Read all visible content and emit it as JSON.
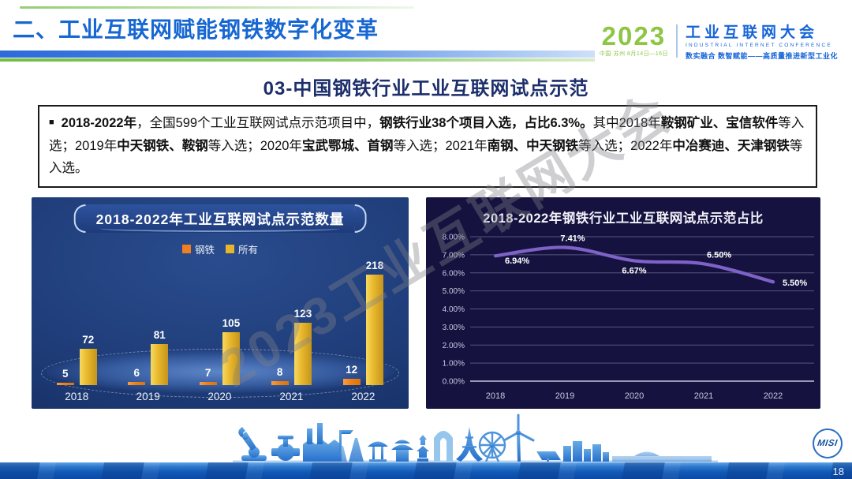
{
  "header": {
    "section_title": "二、工业互联网赋能钢铁数字化变革",
    "logo": {
      "year": "2023",
      "venue": "中国·苏州 8月14日—16日",
      "name_cn": "工业互联网大会",
      "name_en": "INDUSTRIAL INTERNET CONFERENCE",
      "tagline": "数实融合 数智赋能——高质量推进新型工业化"
    }
  },
  "page_title": "03-中国钢铁行业工业互联网试点示范",
  "summary": {
    "bullet": "■",
    "segments": [
      {
        "text": "2018-2022年",
        "bold": true
      },
      {
        "text": "，全国599个工业互联网试点示范项目中，",
        "bold": false
      },
      {
        "text": "钢铁行业38个项目入选，占比6.3%。",
        "bold": true
      },
      {
        "text": "其中2018年",
        "bold": false
      },
      {
        "text": "鞍钢矿业、宝信软件",
        "bold": true
      },
      {
        "text": "等入选；2019年",
        "bold": false
      },
      {
        "text": "中天钢铁、鞍钢",
        "bold": true
      },
      {
        "text": "等入选；2020年",
        "bold": false
      },
      {
        "text": "宝武鄂城、首钢",
        "bold": true
      },
      {
        "text": "等入选；2021年",
        "bold": false
      },
      {
        "text": "南钢、中天钢铁",
        "bold": true
      },
      {
        "text": "等入选；2022年",
        "bold": false
      },
      {
        "text": "中冶赛迪、天津钢铁",
        "bold": true
      },
      {
        "text": "等入选。",
        "bold": false
      }
    ]
  },
  "chart_data": [
    {
      "type": "bar",
      "title": "2018-2022年工业互联网试点示范数量",
      "categories": [
        "2018",
        "2019",
        "2020",
        "2021",
        "2022"
      ],
      "series": [
        {
          "name": "钢铁",
          "color": "#f07f1d",
          "values": [
            5,
            6,
            7,
            8,
            12
          ]
        },
        {
          "name": "所有",
          "color": "#e7b62c",
          "values": [
            72,
            81,
            105,
            123,
            218
          ]
        }
      ],
      "ylim": [
        0,
        230
      ],
      "legend_position": "top",
      "grid": false,
      "value_labels": true
    },
    {
      "type": "line",
      "title": "2018-2022年钢铁行业工业互联网试点示范占比",
      "x": [
        "2018",
        "2019",
        "2020",
        "2021",
        "2022"
      ],
      "values": [
        6.94,
        7.41,
        6.67,
        6.5,
        5.5
      ],
      "point_labels": [
        "6.94%",
        "7.41%",
        "6.67%",
        "6.50%",
        "5.50%"
      ],
      "y_ticks": [
        "8.00%",
        "7.00%",
        "6.00%",
        "5.00%",
        "4.00%",
        "3.00%",
        "2.00%",
        "1.00%",
        "0.00%"
      ],
      "ylim": [
        0,
        8
      ],
      "line_color": "#7e62c8",
      "grid": true,
      "legend_position": "none"
    }
  ],
  "watermark": "2023工业互联网大会",
  "footer": {
    "page_number": "18",
    "logo_text": "MISI"
  }
}
